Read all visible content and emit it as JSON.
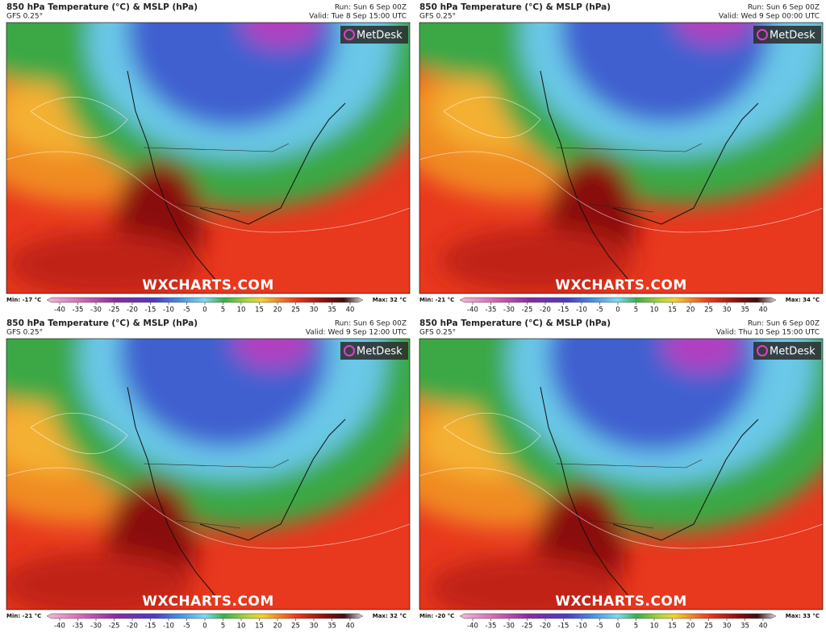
{
  "colorbar_labels": [
    -40,
    -35,
    -30,
    -25,
    -20,
    -15,
    -10,
    -5,
    0,
    5,
    10,
    15,
    20,
    25,
    30,
    35,
    40
  ],
  "panels": [
    {
      "title": "850 hPa Temperature (°C) & MSLP (hPa)",
      "model": "GFS 0.25°",
      "run": "Run: Sun 6 Sep 00Z",
      "valid": "Valid: Tue 8 Sep 15:00 UTC",
      "brand": "MetDesk",
      "watermark": "WXCHARTS.COM",
      "min": "Min: -17 °C",
      "max": "Max: 32 °C"
    },
    {
      "title": "850 hPa Temperature (°C) & MSLP (hPa)",
      "model": "GFS 0.25°",
      "run": "Run: Sun 6 Sep 00Z",
      "valid": "Valid: Wed 9 Sep 00:00 UTC",
      "brand": "MetDesk",
      "watermark": "WXCHARTS.COM",
      "min": "Min: -21 °C",
      "max": "Max: 34 °C"
    },
    {
      "title": "850 hPa Temperature (°C) & MSLP (hPa)",
      "model": "GFS 0.25°",
      "run": "Run: Sun 6 Sep 00Z",
      "valid": "Valid: Wed 9 Sep 12:00 UTC",
      "brand": "MetDesk",
      "watermark": "WXCHARTS.COM",
      "min": "Min: -21 °C",
      "max": "Max: 32 °C"
    },
    {
      "title": "850 hPa Temperature (°C) & MSLP (hPa)",
      "model": "GFS 0.25°",
      "run": "Run: Sun 6 Sep 00Z",
      "valid": "Valid: Thu 10 Sep 15:00 UTC",
      "brand": "MetDesk",
      "watermark": "WXCHARTS.COM",
      "min": "Min: -20 °C",
      "max": "Max: 33 °C"
    }
  ]
}
